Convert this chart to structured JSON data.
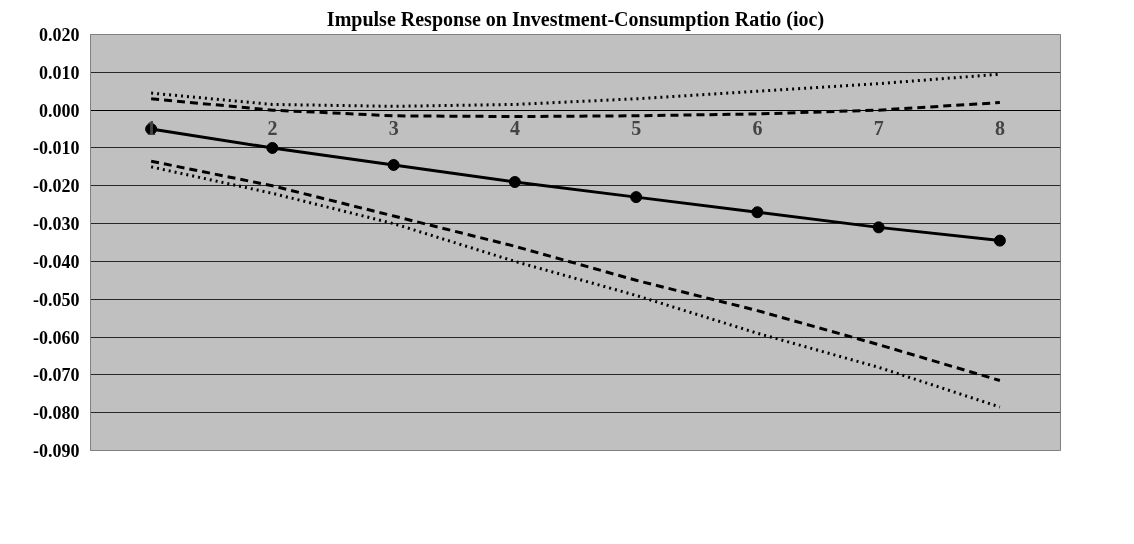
{
  "chart_data": {
    "type": "line",
    "title": "Impulse Response on Investment-Consumption Ratio (ioc)",
    "categories": [
      "1",
      "2",
      "3",
      "4",
      "5",
      "6",
      "7",
      "8"
    ],
    "series": [
      {
        "color": "#000000",
        "line_style": "solid",
        "marker": "circle",
        "values": [
          -0.005,
          -0.01,
          -0.0145,
          -0.019,
          -0.023,
          -0.027,
          -0.031,
          -0.0345
        ]
      },
      {
        "color": "#000000",
        "line_style": "dashed",
        "marker": "none",
        "values": [
          0.003,
          0.0,
          -0.0015,
          -0.0017,
          -0.0015,
          -0.001,
          0.0,
          0.002
        ]
      },
      {
        "color": "#000000",
        "line_style": "dotted",
        "marker": "none",
        "values": [
          0.0045,
          0.0015,
          0.001,
          0.0015,
          0.003,
          0.005,
          0.007,
          0.0095
        ]
      },
      {
        "color": "#000000",
        "line_style": "dashed",
        "marker": "none",
        "values": [
          -0.0135,
          -0.02,
          -0.028,
          -0.036,
          -0.045,
          -0.053,
          -0.062,
          -0.0715
        ]
      },
      {
        "color": "#000000",
        "line_style": "dotted",
        "marker": "none",
        "values": [
          -0.015,
          -0.022,
          -0.03,
          -0.04,
          -0.049,
          -0.059,
          -0.068,
          -0.0785
        ]
      }
    ],
    "ylim": [
      -0.09,
      0.02
    ],
    "yticks": [
      {
        "value": 0.02,
        "label": "0.020"
      },
      {
        "value": 0.01,
        "label": "0.010"
      },
      {
        "value": 0,
        "label": "0.000"
      },
      {
        "value": -0.01,
        "label": "-0.010"
      },
      {
        "value": -0.02,
        "label": "-0.020"
      },
      {
        "value": -0.03,
        "label": "-0.030"
      },
      {
        "value": -0.04,
        "label": "-0.040"
      },
      {
        "value": -0.05,
        "label": "-0.050"
      },
      {
        "value": -0.06,
        "label": "-0.060"
      },
      {
        "value": -0.07,
        "label": "-0.070"
      },
      {
        "value": -0.08,
        "label": "-0.080"
      },
      {
        "value": -0.09,
        "label": "-0.090"
      }
    ],
    "grid": "y"
  }
}
